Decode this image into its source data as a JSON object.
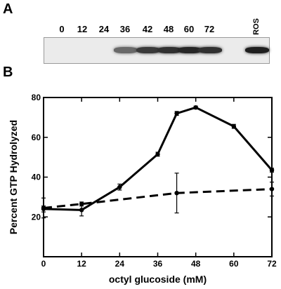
{
  "figure": {
    "panel_a_label": "A",
    "panel_b_label": "B"
  },
  "blot": {
    "lanes": [
      "0",
      "12",
      "24",
      "36",
      "42",
      "48",
      "60",
      "72",
      "ROS"
    ],
    "band_intensity": [
      0,
      0,
      0,
      0.55,
      0.8,
      0.85,
      0.9,
      0.85,
      0.95
    ]
  },
  "chart_data": {
    "type": "line",
    "title": "",
    "xlabel": "octyl glucoside (mM)",
    "ylabel": "Percent GTP Hydrolyzed",
    "xlim": [
      0,
      72
    ],
    "ylim": [
      0,
      80
    ],
    "xticks": [
      0,
      12,
      24,
      36,
      48,
      60,
      72
    ],
    "yticks": [
      20,
      40,
      60,
      80
    ],
    "grid": false,
    "series": [
      {
        "style": "solid",
        "x": [
          0,
          12,
          24,
          36,
          42,
          48,
          60,
          72
        ],
        "y": [
          24,
          23.5,
          35,
          51.5,
          72,
          75,
          65.5,
          43.5
        ],
        "err": [
          1.5,
          3,
          1.5,
          1,
          1,
          0.7,
          1,
          1
        ]
      },
      {
        "style": "dashed",
        "x": [
          0,
          12,
          42,
          72
        ],
        "y": [
          24.5,
          26.5,
          32,
          34
        ],
        "err": [
          5,
          1,
          10,
          3.5
        ]
      }
    ]
  }
}
